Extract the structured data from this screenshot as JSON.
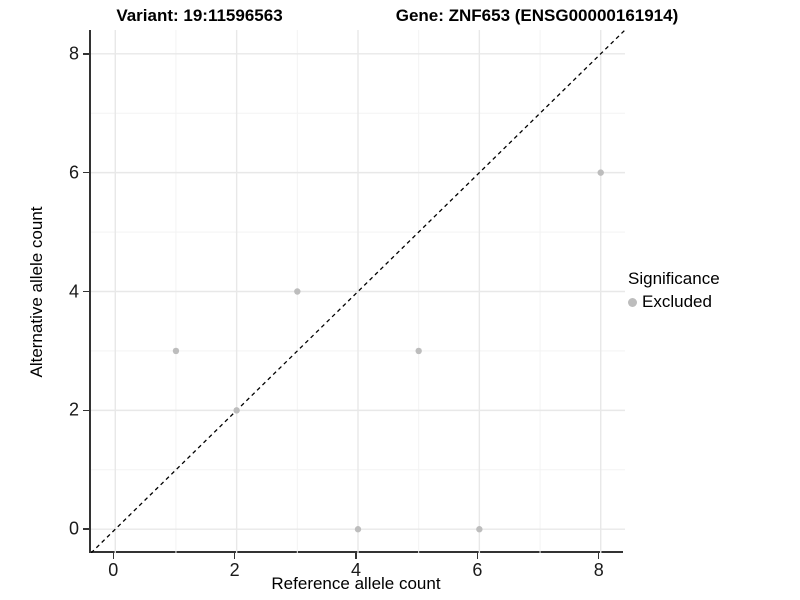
{
  "chart_data": {
    "type": "scatter",
    "title_left": "Variant: 19:11596563",
    "title_right": "Gene: ZNF653 (ENSG00000161914)",
    "xlabel": "Reference allele count",
    "ylabel": "Alternative allele count",
    "xlim": [
      -0.4,
      8.4
    ],
    "ylim": [
      -0.4,
      8.4
    ],
    "x_ticks": [
      0,
      2,
      4,
      6,
      8
    ],
    "y_ticks": [
      0,
      2,
      4,
      6,
      8
    ],
    "minor_grid_positions": [
      1,
      3,
      5,
      7
    ],
    "grid": true,
    "legend_position": "right",
    "legend": {
      "title": "Significance",
      "entries": [
        "Excluded"
      ]
    },
    "series": [
      {
        "name": "Excluded",
        "color": "#bdbdbd",
        "points": [
          {
            "x": 1,
            "y": 3
          },
          {
            "x": 2,
            "y": 2
          },
          {
            "x": 3,
            "y": 4
          },
          {
            "x": 4,
            "y": 0
          },
          {
            "x": 5,
            "y": 3
          },
          {
            "x": 6,
            "y": 0
          },
          {
            "x": 8,
            "y": 6
          }
        ]
      }
    ],
    "reference_line": {
      "type": "identity",
      "style": "dashed",
      "color": "#000000"
    }
  },
  "colors": {
    "axis_line": "#333333",
    "tick_label": "#1a1a1a",
    "grid_major": "#e8e8e8",
    "grid_minor": "#f3f3f3",
    "point": "#bdbdbd"
  }
}
